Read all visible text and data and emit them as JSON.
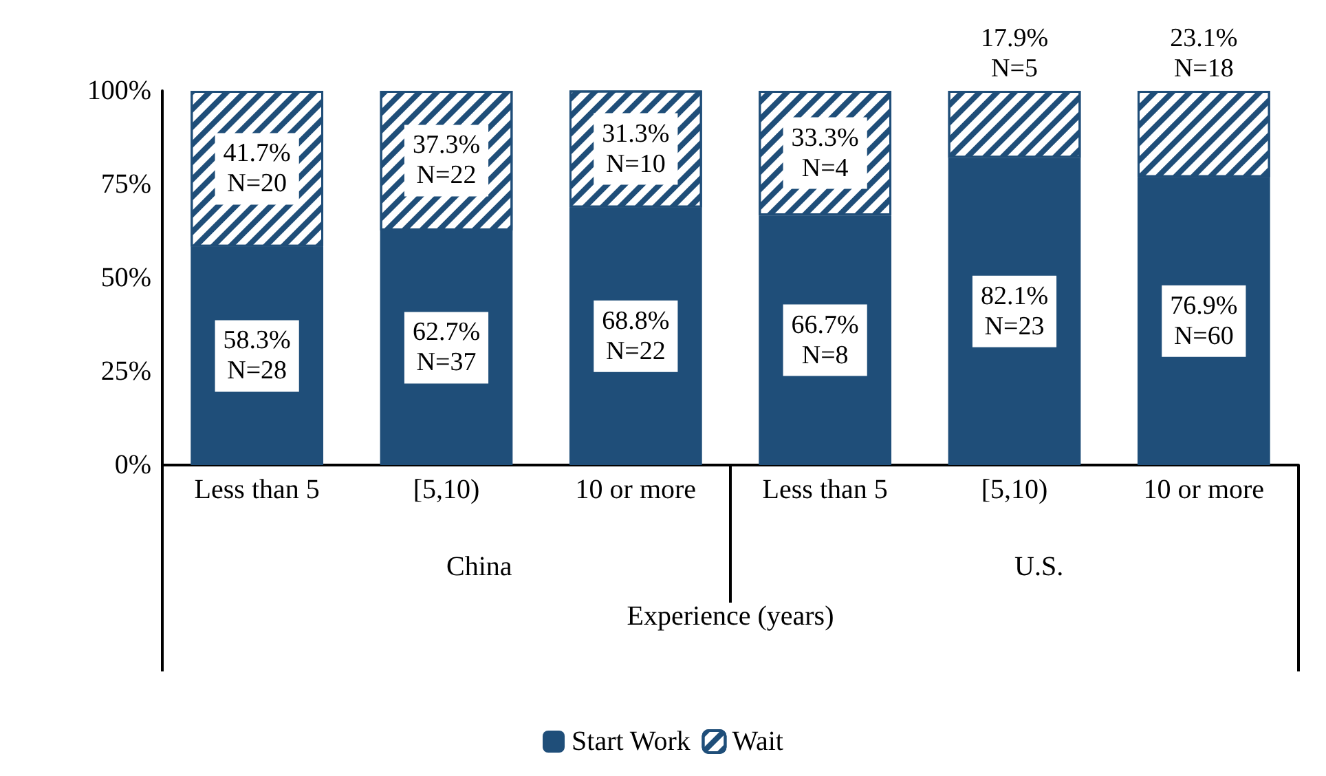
{
  "chart_data": {
    "type": "bar",
    "stacked": true,
    "xlabel": "Experience (years)",
    "categories": [
      "Less than 5",
      "[5,10)",
      "10 or more",
      "Less than 5",
      "[5,10)",
      "10 or more"
    ],
    "series": [
      {
        "name": "Start Work",
        "color": "#1f4e79",
        "values": [
          58.3,
          62.7,
          68.8,
          66.7,
          82.1,
          76.9
        ],
        "value_labels": [
          "58.3%\nN=28",
          "62.7%\nN=37",
          "68.8%\nN=22",
          "66.7%\nN=8",
          "82.1%\nN=23",
          "76.9%\nN=60"
        ]
      },
      {
        "name": "Wait",
        "color": "#1f4e79",
        "values": [
          41.7,
          37.3,
          31.3,
          33.3,
          17.9,
          23.1
        ],
        "value_labels": [
          "41.7%\nN=20",
          "37.3%\nN=22",
          "31.3%\nN=10",
          "33.3%\nN=4",
          "17.9%\nN=5",
          "23.1%\nN=18"
        ]
      }
    ],
    "annotations": [
      "China",
      "U.S."
    ],
    "ylim": [
      0,
      100
    ],
    "yticks": [
      {
        "value": 0,
        "label": "0%"
      },
      {
        "value": 25,
        "label": "25%"
      },
      {
        "value": 50,
        "label": "50%"
      },
      {
        "value": 75,
        "label": "75%"
      },
      {
        "value": 100,
        "label": "100%"
      }
    ],
    "grid": false,
    "legend": "bottom"
  }
}
